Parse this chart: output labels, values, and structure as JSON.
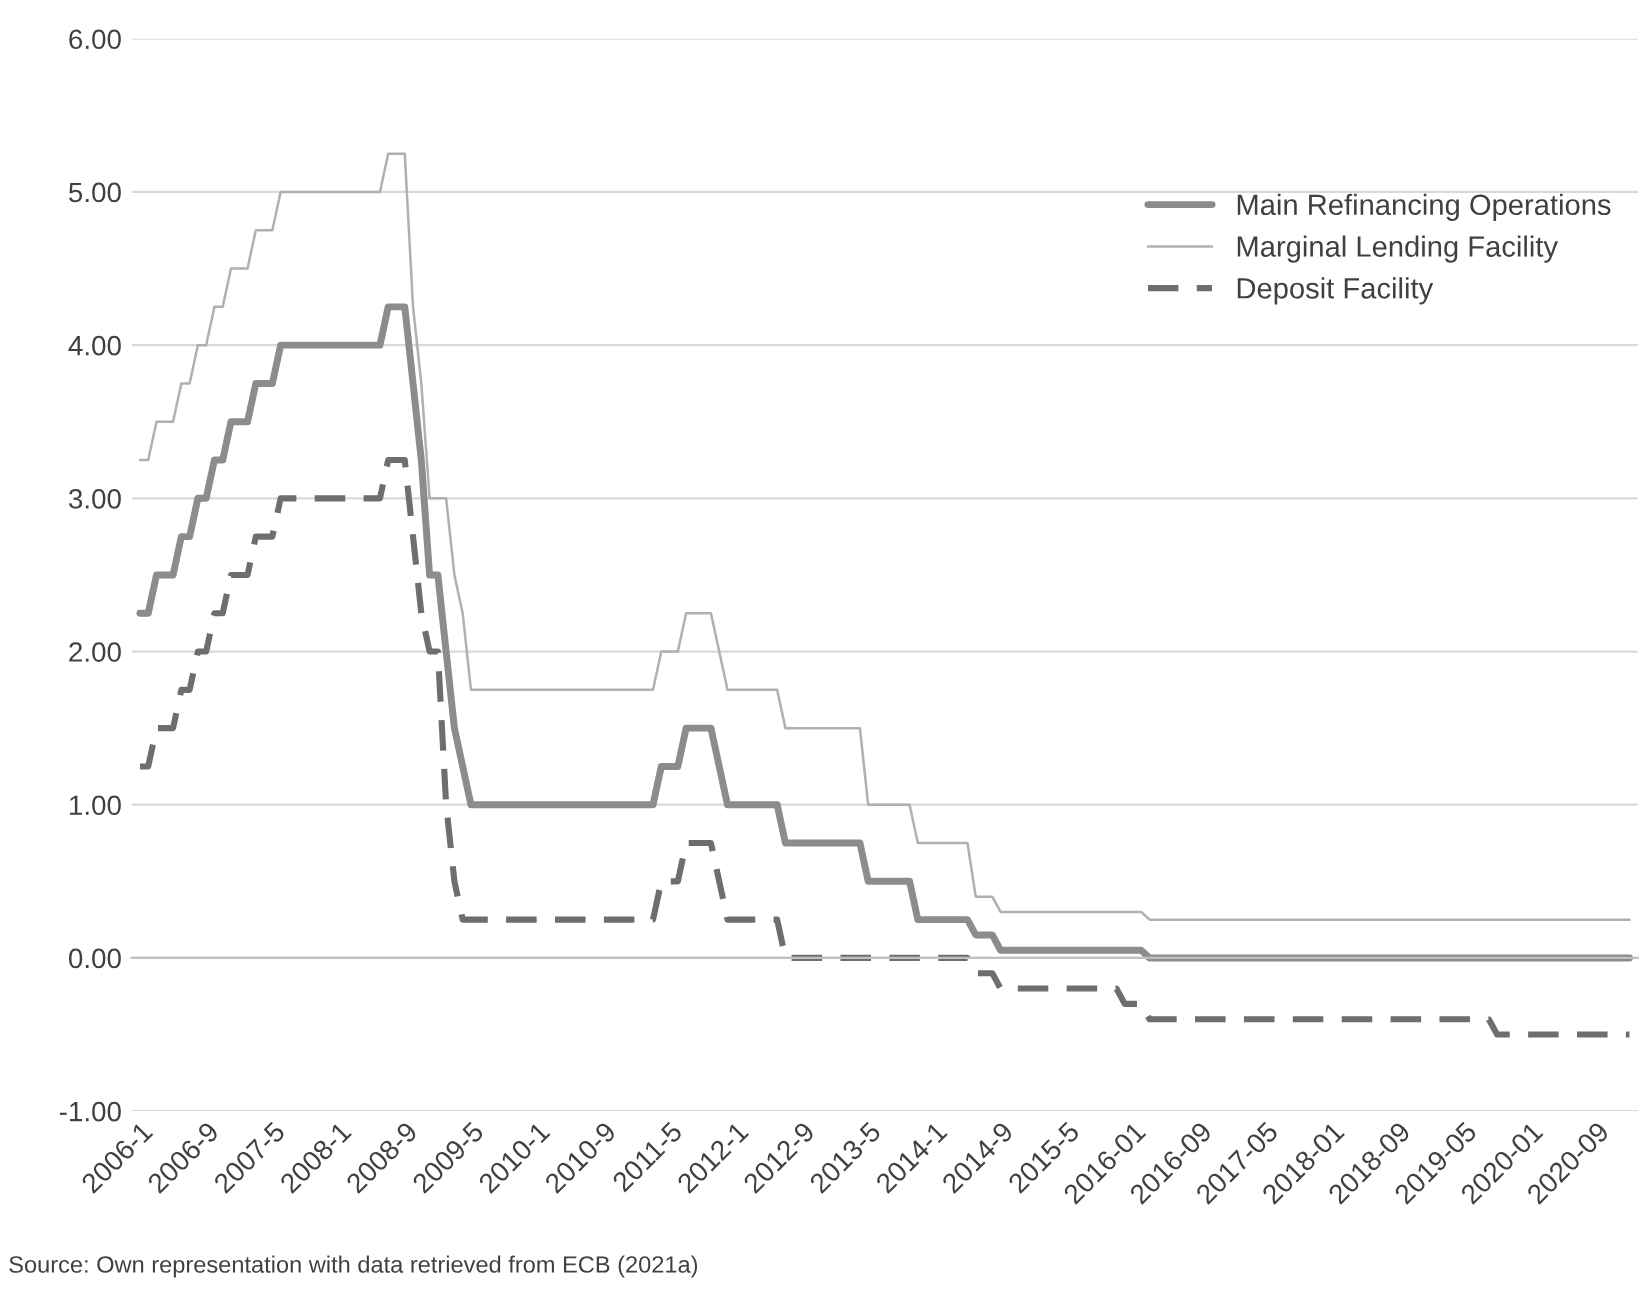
{
  "chart_data": {
    "type": "line",
    "categories": [
      "2006-1",
      null,
      null,
      null,
      null,
      null,
      null,
      null,
      "2006-9",
      null,
      null,
      null,
      null,
      null,
      null,
      null,
      "2007-5",
      null,
      null,
      null,
      null,
      null,
      null,
      null,
      "2008-1",
      null,
      null,
      null,
      null,
      null,
      null,
      null,
      "2008-9",
      null,
      null,
      null,
      null,
      null,
      null,
      null,
      "2009-5",
      null,
      null,
      null,
      null,
      null,
      null,
      null,
      "2010-1",
      null,
      null,
      null,
      null,
      null,
      null,
      null,
      "2010-9",
      null,
      null,
      null,
      null,
      null,
      null,
      null,
      "2011-5",
      null,
      null,
      null,
      null,
      null,
      null,
      null,
      "2012-1",
      null,
      null,
      null,
      null,
      null,
      null,
      null,
      "2012-9",
      null,
      null,
      null,
      null,
      null,
      null,
      null,
      "2013-5",
      null,
      null,
      null,
      null,
      null,
      null,
      null,
      "2014-1",
      null,
      null,
      null,
      null,
      null,
      null,
      null,
      "2014-9",
      null,
      null,
      null,
      null,
      null,
      null,
      null,
      "2015-5",
      null,
      null,
      null,
      null,
      null,
      null,
      null,
      "2016-01",
      null,
      null,
      null,
      null,
      null,
      null,
      null,
      "2016-09",
      null,
      null,
      null,
      null,
      null,
      null,
      null,
      "2017-05",
      null,
      null,
      null,
      null,
      null,
      null,
      null,
      "2018-01",
      null,
      null,
      null,
      null,
      null,
      null,
      null,
      "2018-09",
      null,
      null,
      null,
      null,
      null,
      null,
      null,
      "2019-05",
      null,
      null,
      null,
      null,
      null,
      null,
      null,
      "2020-01",
      null,
      null,
      null,
      null,
      null,
      null,
      null,
      "2020-09",
      null,
      null,
      null,
      null
    ],
    "series": [
      {
        "name": "Main Refinancing Operations",
        "color": "#8c8c8c",
        "line_style": "solid",
        "values": [
          2.25,
          2.25,
          2.5,
          2.5,
          2.5,
          2.75,
          2.75,
          3,
          3,
          3.25,
          3.25,
          3.5,
          3.5,
          3.5,
          3.75,
          3.75,
          3.75,
          4,
          4,
          4,
          4,
          4,
          4,
          4,
          4,
          4,
          4,
          4,
          4,
          4,
          4.25,
          4.25,
          4.25,
          3.75,
          3.25,
          2.5,
          2.5,
          2,
          1.5,
          1.25,
          1,
          1,
          1,
          1,
          1,
          1,
          1,
          1,
          1,
          1,
          1,
          1,
          1,
          1,
          1,
          1,
          1,
          1,
          1,
          1,
          1,
          1,
          1,
          1.25,
          1.25,
          1.25,
          1.5,
          1.5,
          1.5,
          1.5,
          1.25,
          1,
          1,
          1,
          1,
          1,
          1,
          1,
          0.75,
          0.75,
          0.75,
          0.75,
          0.75,
          0.75,
          0.75,
          0.75,
          0.75,
          0.75,
          0.5,
          0.5,
          0.5,
          0.5,
          0.5,
          0.5,
          0.25,
          0.25,
          0.25,
          0.25,
          0.25,
          0.25,
          0.25,
          0.15,
          0.15,
          0.15,
          0.05,
          0.05,
          0.05,
          0.05,
          0.05,
          0.05,
          0.05,
          0.05,
          0.05,
          0.05,
          0.05,
          0.05,
          0.05,
          0.05,
          0.05,
          0.05,
          0.05,
          0.05,
          0,
          0,
          0,
          0,
          0,
          0,
          0,
          0,
          0,
          0,
          0,
          0,
          0,
          0,
          0,
          0,
          0,
          0,
          0,
          0,
          0,
          0,
          0,
          0,
          0,
          0,
          0,
          0,
          0,
          0,
          0,
          0,
          0,
          0,
          0,
          0,
          0,
          0,
          0,
          0,
          0,
          0,
          0,
          0,
          0,
          0,
          0,
          0,
          0,
          0,
          0,
          0,
          0,
          0,
          0,
          0,
          0,
          0,
          0
        ]
      },
      {
        "name": "Marginal Lending Facility",
        "color": "#b0b0b0",
        "line_style": "solid",
        "values": [
          3.25,
          3.25,
          3.5,
          3.5,
          3.5,
          3.75,
          3.75,
          4,
          4,
          4.25,
          4.25,
          4.5,
          4.5,
          4.5,
          4.75,
          4.75,
          4.75,
          5,
          5,
          5,
          5,
          5,
          5,
          5,
          5,
          5,
          5,
          5,
          5,
          5,
          5.25,
          5.25,
          5.25,
          4.25,
          3.75,
          3,
          3,
          3,
          2.5,
          2.25,
          1.75,
          1.75,
          1.75,
          1.75,
          1.75,
          1.75,
          1.75,
          1.75,
          1.75,
          1.75,
          1.75,
          1.75,
          1.75,
          1.75,
          1.75,
          1.75,
          1.75,
          1.75,
          1.75,
          1.75,
          1.75,
          1.75,
          1.75,
          2,
          2,
          2,
          2.25,
          2.25,
          2.25,
          2.25,
          2,
          1.75,
          1.75,
          1.75,
          1.75,
          1.75,
          1.75,
          1.75,
          1.5,
          1.5,
          1.5,
          1.5,
          1.5,
          1.5,
          1.5,
          1.5,
          1.5,
          1.5,
          1,
          1,
          1,
          1,
          1,
          1,
          0.75,
          0.75,
          0.75,
          0.75,
          0.75,
          0.75,
          0.75,
          0.4,
          0.4,
          0.4,
          0.3,
          0.3,
          0.3,
          0.3,
          0.3,
          0.3,
          0.3,
          0.3,
          0.3,
          0.3,
          0.3,
          0.3,
          0.3,
          0.3,
          0.3,
          0.3,
          0.3,
          0.3,
          0.25,
          0.25,
          0.25,
          0.25,
          0.25,
          0.25,
          0.25,
          0.25,
          0.25,
          0.25,
          0.25,
          0.25,
          0.25,
          0.25,
          0.25,
          0.25,
          0.25,
          0.25,
          0.25,
          0.25,
          0.25,
          0.25,
          0.25,
          0.25,
          0.25,
          0.25,
          0.25,
          0.25,
          0.25,
          0.25,
          0.25,
          0.25,
          0.25,
          0.25,
          0.25,
          0.25,
          0.25,
          0.25,
          0.25,
          0.25,
          0.25,
          0.25,
          0.25,
          0.25,
          0.25,
          0.25,
          0.25,
          0.25,
          0.25,
          0.25,
          0.25,
          0.25,
          0.25,
          0.25,
          0.25,
          0.25,
          0.25,
          0.25,
          0.25
        ]
      },
      {
        "name": "Deposit Facility",
        "color": "#6e6e6e",
        "line_style": "dashed",
        "values": [
          1.25,
          1.25,
          1.5,
          1.5,
          1.5,
          1.75,
          1.75,
          2,
          2,
          2.25,
          2.25,
          2.5,
          2.5,
          2.5,
          2.75,
          2.75,
          2.75,
          3,
          3,
          3,
          3,
          3,
          3,
          3,
          3,
          3,
          3,
          3,
          3,
          3,
          3.25,
          3.25,
          3.25,
          2.75,
          2.25,
          2,
          2,
          1,
          0.5,
          0.25,
          0.25,
          0.25,
          0.25,
          0.25,
          0.25,
          0.25,
          0.25,
          0.25,
          0.25,
          0.25,
          0.25,
          0.25,
          0.25,
          0.25,
          0.25,
          0.25,
          0.25,
          0.25,
          0.25,
          0.25,
          0.25,
          0.25,
          0.25,
          0.5,
          0.5,
          0.5,
          0.75,
          0.75,
          0.75,
          0.75,
          0.5,
          0.25,
          0.25,
          0.25,
          0.25,
          0.25,
          0.25,
          0.25,
          0,
          0,
          0,
          0,
          0,
          0,
          0,
          0,
          0,
          0,
          0,
          0,
          0,
          0,
          0,
          0,
          0,
          0,
          0,
          0,
          0,
          0,
          0,
          -0.1,
          -0.1,
          -0.1,
          -0.2,
          -0.2,
          -0.2,
          -0.2,
          -0.2,
          -0.2,
          -0.2,
          -0.2,
          -0.2,
          -0.2,
          -0.2,
          -0.2,
          -0.2,
          -0.2,
          -0.2,
          -0.3,
          -0.3,
          -0.3,
          -0.4,
          -0.4,
          -0.4,
          -0.4,
          -0.4,
          -0.4,
          -0.4,
          -0.4,
          -0.4,
          -0.4,
          -0.4,
          -0.4,
          -0.4,
          -0.4,
          -0.4,
          -0.4,
          -0.4,
          -0.4,
          -0.4,
          -0.4,
          -0.4,
          -0.4,
          -0.4,
          -0.4,
          -0.4,
          -0.4,
          -0.4,
          -0.4,
          -0.4,
          -0.4,
          -0.4,
          -0.4,
          -0.4,
          -0.4,
          -0.4,
          -0.4,
          -0.4,
          -0.4,
          -0.4,
          -0.4,
          -0.4,
          -0.4,
          -0.5,
          -0.5,
          -0.5,
          -0.5,
          -0.5,
          -0.5,
          -0.5,
          -0.5,
          -0.5,
          -0.5,
          -0.5,
          -0.5,
          -0.5,
          -0.5,
          -0.5,
          -0.5,
          -0.5
        ]
      }
    ],
    "ylim": [
      -1,
      6
    ],
    "yticks": [
      {
        "value": -1,
        "label": "-1.00"
      },
      {
        "value": 0,
        "label": "0.00"
      },
      {
        "value": 1,
        "label": "1.00"
      },
      {
        "value": 2,
        "label": "2.00"
      },
      {
        "value": 3,
        "label": "3.00"
      },
      {
        "value": 4,
        "label": "4.00"
      },
      {
        "value": 5,
        "label": "5.00"
      },
      {
        "value": 6,
        "label": "6.00"
      }
    ],
    "grid": "y",
    "legend": "top right",
    "annotations": [
      "Source: Own representation with data retrieved from ECB (2021a)"
    ]
  }
}
